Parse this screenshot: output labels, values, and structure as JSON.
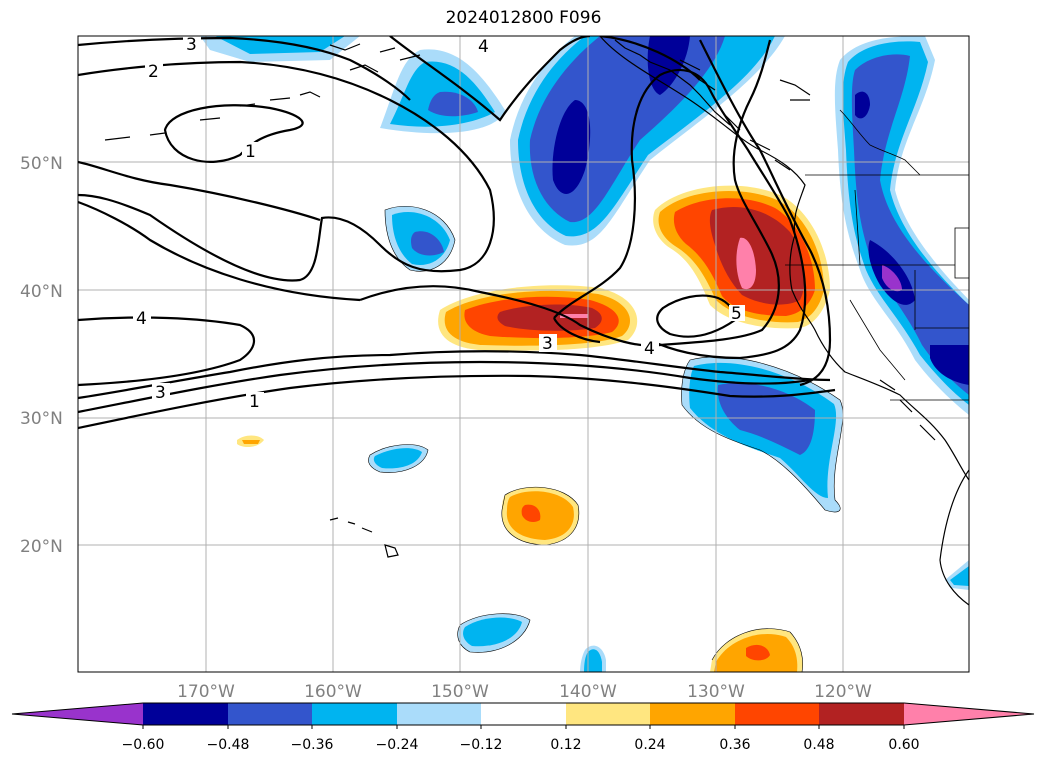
{
  "title": "2024012800 F096",
  "colors": {
    "neg_060": "#9933cc",
    "neg_048": "#000099",
    "neg_036": "#3355cc",
    "neg_024": "#00b4f0",
    "neg_012": "#aadcfa",
    "neutral": "#ffffff",
    "pos_012": "#ffe680",
    "pos_024": "#ffa500",
    "pos_036": "#ff4500",
    "pos_048": "#b22222",
    "pos_060": "#ff80aa",
    "contour": "#000000",
    "grid": "#b0b0b0",
    "axis_label": "#808080"
  },
  "latitude_labels": [
    "50°N",
    "40°N",
    "30°N",
    "20°N"
  ],
  "longitude_labels": [
    "170°W",
    "160°W",
    "150°W",
    "140°W",
    "130°W",
    "120°W"
  ],
  "contour_labels": [
    "3",
    "4",
    "2",
    "1",
    "4",
    "3",
    "1",
    "3",
    "4",
    "5"
  ],
  "colorbar": {
    "extend": "both",
    "tick_labels": [
      "−0.60",
      "−0.48",
      "−0.36",
      "−0.24",
      "−0.12",
      "0.12",
      "0.24",
      "0.36",
      "0.48",
      "0.60"
    ]
  }
}
